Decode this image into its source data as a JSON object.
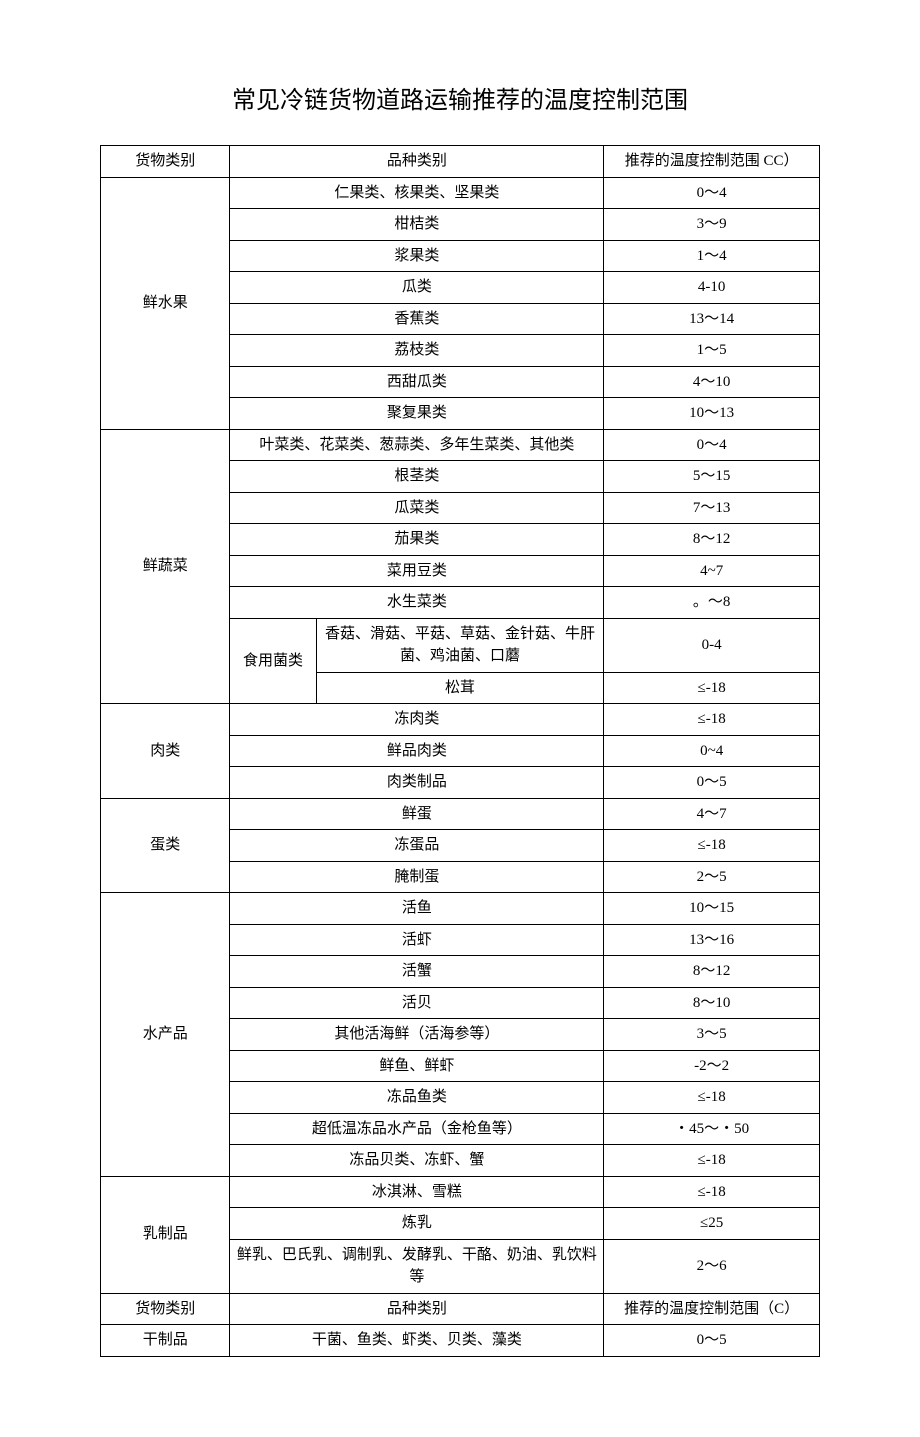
{
  "title": "常见冷链货物道路运输推荐的温度控制范围",
  "headers": {
    "category": "货物类别",
    "variety": "品种类别",
    "temperature": "推荐的温度控制范围 CC）"
  },
  "headers2": {
    "category": "货物类别",
    "variety": "品种类别",
    "temperature": "推荐的温度控制范围（C）"
  },
  "fruits": {
    "category": "鲜水果",
    "rows": [
      {
        "variety": "仁果类、核果类、坚果类",
        "temp": "0～4"
      },
      {
        "variety": "柑桔类",
        "temp": "3～9"
      },
      {
        "variety": "浆果类",
        "temp": "1～4"
      },
      {
        "variety": "瓜类",
        "temp": "4-10"
      },
      {
        "variety": "香蕉类",
        "temp": "13～14"
      },
      {
        "variety": "荔枝类",
        "temp": "1～5"
      },
      {
        "variety": "西甜瓜类",
        "temp": "4～10"
      },
      {
        "variety": "聚复果类",
        "temp": "10～13"
      }
    ]
  },
  "vegetables": {
    "category": "鲜蔬菜",
    "rows": [
      {
        "variety": "叶菜类、花菜类、葱蒜类、多年生菜类、其他类",
        "temp": "0～4"
      },
      {
        "variety": "根茎类",
        "temp": "5～15"
      },
      {
        "variety": "瓜菜类",
        "temp": "7～13"
      },
      {
        "variety": "茄果类",
        "temp": "8～12"
      },
      {
        "variety": "菜用豆类",
        "temp": "4~7"
      },
      {
        "variety": "水生菜类",
        "temp": "。～8"
      }
    ],
    "mushroom": {
      "label": "食用菌类",
      "rows": [
        {
          "variety": "香菇、滑菇、平菇、草菇、金针菇、牛肝菌、鸡油菌、口蘑",
          "temp": "0-4"
        },
        {
          "variety": "松茸",
          "temp": "≤-18"
        }
      ]
    }
  },
  "meat": {
    "category": "肉类",
    "rows": [
      {
        "variety": "冻肉类",
        "temp": "≤-18"
      },
      {
        "variety": "鲜品肉类",
        "temp": "0~4"
      },
      {
        "variety": "肉类制品",
        "temp": "0～5"
      }
    ]
  },
  "eggs": {
    "category": "蛋类",
    "rows": [
      {
        "variety": "鲜蛋",
        "temp": "4～7"
      },
      {
        "variety": "冻蛋品",
        "temp": "≤-18"
      },
      {
        "variety": "腌制蛋",
        "temp": "2～5"
      }
    ]
  },
  "aquatic": {
    "category": "水产品",
    "rows": [
      {
        "variety": "活鱼",
        "temp": "10～15"
      },
      {
        "variety": "活虾",
        "temp": "13～16"
      },
      {
        "variety": "活蟹",
        "temp": "8～12"
      },
      {
        "variety": "活贝",
        "temp": "8～10"
      },
      {
        "variety": "其他活海鲜（活海参等）",
        "temp": "3～5"
      },
      {
        "variety": "鲜鱼、鲜虾",
        "temp": "-2～2"
      },
      {
        "variety": "冻品鱼类",
        "temp": "≤-18"
      },
      {
        "variety": "超低温冻品水产品（金枪鱼等）",
        "temp": "・45～・50"
      },
      {
        "variety": "冻品贝类、冻虾、蟹",
        "temp": "≤-18"
      }
    ]
  },
  "dairy": {
    "category": "乳制品",
    "rows": [
      {
        "variety": "冰淇淋、雪糕",
        "temp": "≤-18"
      },
      {
        "variety": "炼乳",
        "temp": "≤25"
      },
      {
        "variety": "鲜乳、巴氏乳、调制乳、发酵乳、干酪、奶油、乳饮料等",
        "temp": "2～6"
      }
    ]
  },
  "dried": {
    "category": "干制品",
    "rows": [
      {
        "variety": "干菌、鱼类、虾类、贝类、藻类",
        "temp": "0～5"
      }
    ]
  }
}
